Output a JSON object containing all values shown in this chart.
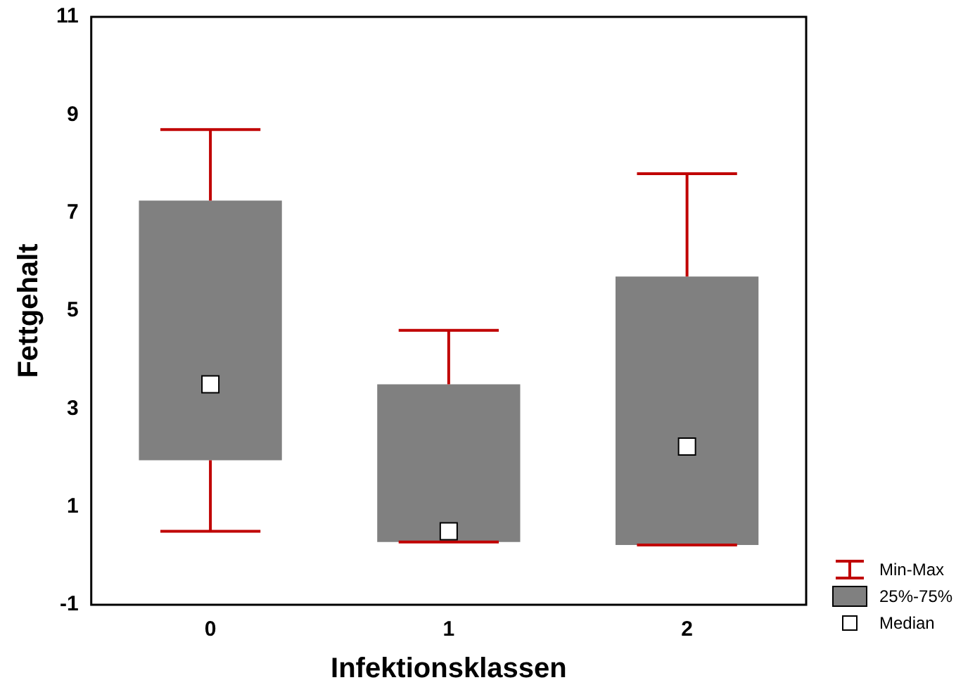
{
  "chart_data": {
    "type": "box",
    "xlabel": "Infektionsklassen",
    "ylabel": "Fettgehalt",
    "categories": [
      "0",
      "1",
      "2"
    ],
    "boxes": [
      {
        "low": 0.5,
        "q1": 1.95,
        "median": 3.5,
        "q3": 7.25,
        "high": 8.7
      },
      {
        "low": 0.28,
        "q1": 0.28,
        "median": 0.5,
        "q3": 3.5,
        "high": 4.6
      },
      {
        "low": 0.22,
        "q1": 0.22,
        "median": 2.23,
        "q3": 5.7,
        "high": 7.8
      }
    ],
    "color": "#808080",
    "ylim": [
      -1,
      11
    ],
    "yticks": [
      -1,
      1,
      3,
      5,
      7,
      9,
      11
    ],
    "grid": false,
    "annotations": [
      "Min-Max",
      "25%-75%",
      "Median"
    ]
  }
}
